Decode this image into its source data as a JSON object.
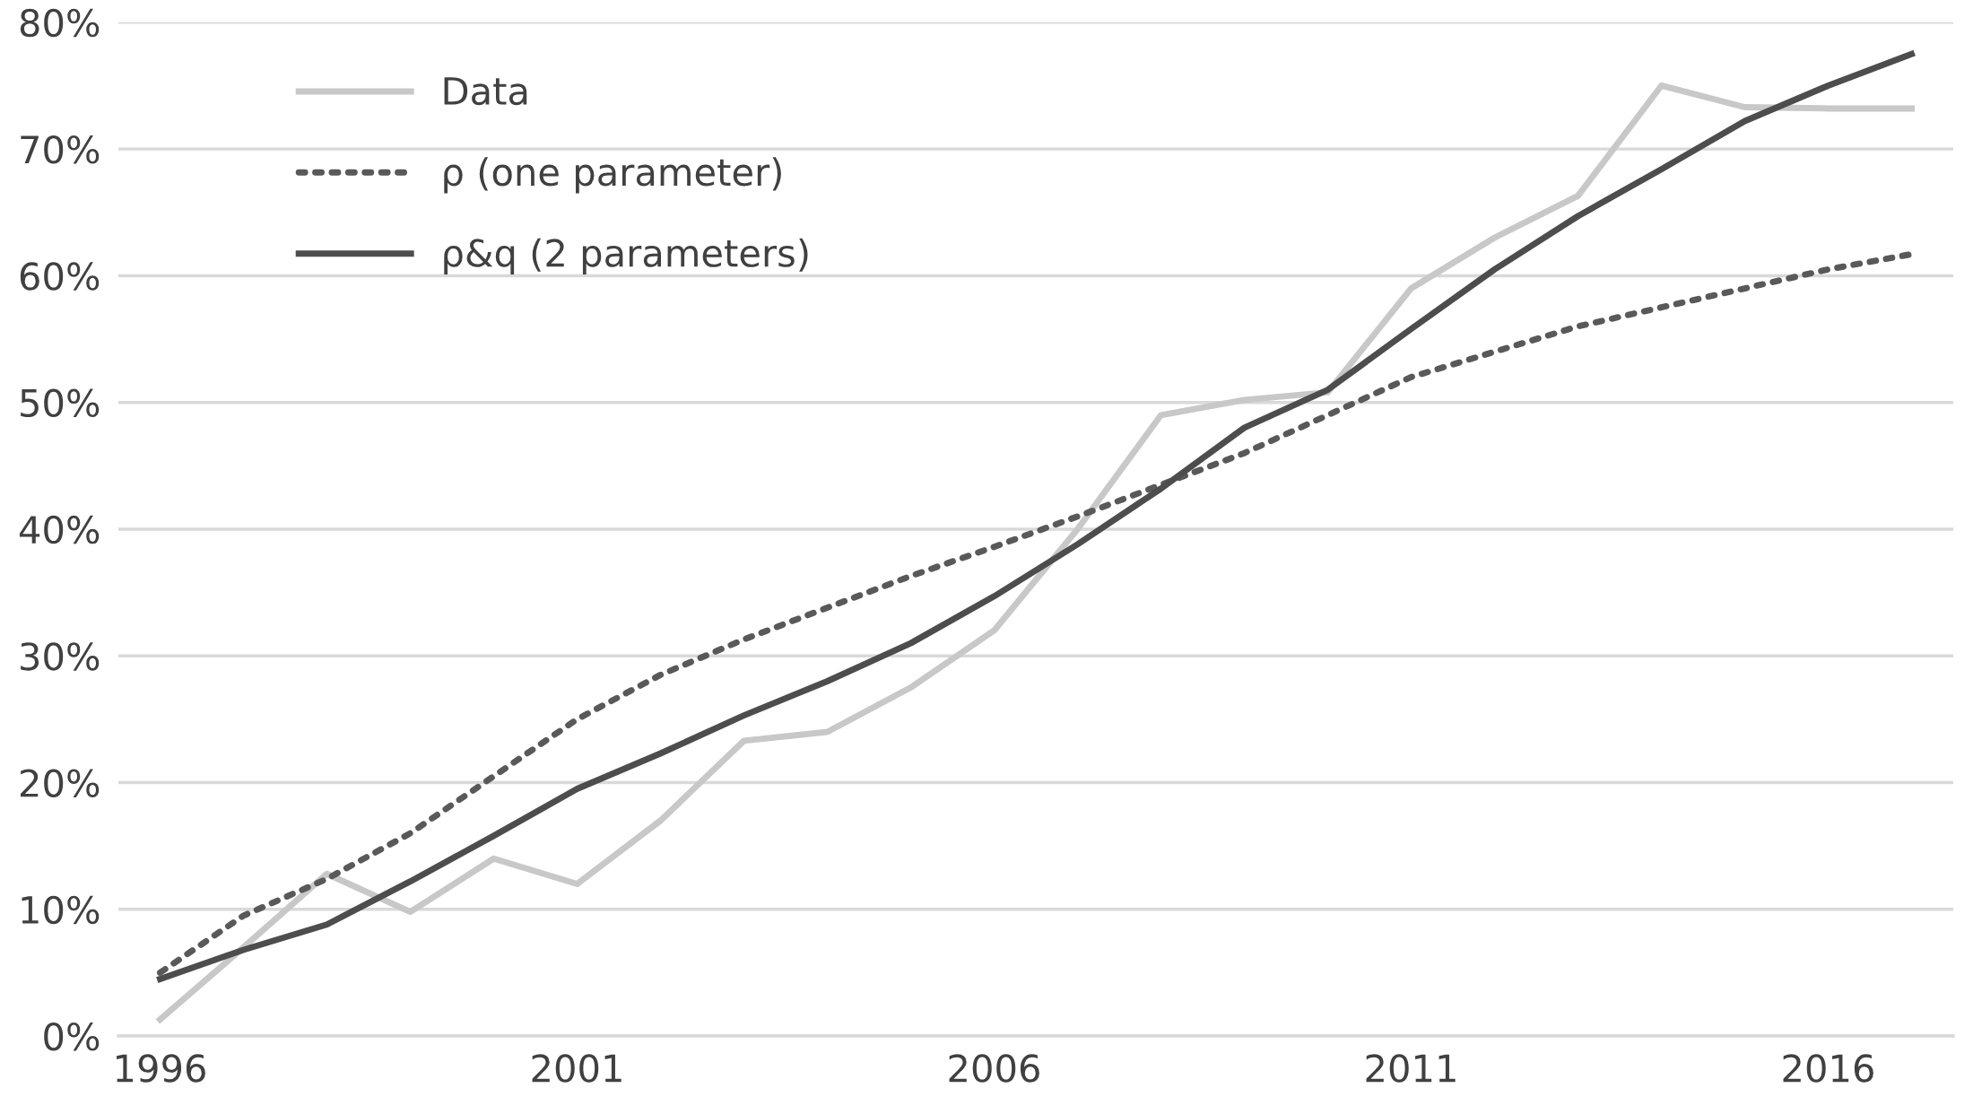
{
  "chart_data": {
    "type": "line",
    "x": [
      1996,
      1997,
      1998,
      1999,
      2000,
      2001,
      2002,
      2003,
      2004,
      2005,
      2006,
      2007,
      2008,
      2009,
      2010,
      2011,
      2012,
      2013,
      2014,
      2015,
      2016,
      2017
    ],
    "series": [
      {
        "name": "Data",
        "color": "#c8c8c8",
        "line_style": "solid",
        "values": [
          1.3,
          7,
          12.8,
          9.8,
          14,
          12,
          17,
          23.3,
          24,
          27.5,
          32,
          40,
          49,
          50.2,
          50.8,
          59,
          63,
          66.3,
          75,
          73.3,
          73.2,
          73.2
        ]
      },
      {
        "name": "ρ (one parameter)",
        "color": "#595959",
        "line_style": "dotted",
        "values": [
          5,
          9.5,
          12.4,
          16,
          20.5,
          25,
          28.5,
          31.3,
          33.8,
          36.3,
          38.6,
          41,
          43.5,
          46,
          49,
          52,
          54,
          56,
          57.5,
          59,
          60.5,
          61.7
        ]
      },
      {
        "name": "ρ&q (2 parameters)",
        "color": "#4d4d4d",
        "line_style": "solid",
        "values": [
          4.5,
          6.8,
          8.8,
          12.2,
          15.8,
          19.5,
          22.3,
          25.3,
          28,
          31,
          34.7,
          38.8,
          43.2,
          48,
          51,
          55.8,
          60.5,
          64.7,
          68.4,
          72.2,
          75,
          77.5
        ]
      }
    ],
    "xlim": [
      1995.5,
      2017.5
    ],
    "xticks": [
      1996,
      2001,
      2006,
      2011,
      2016
    ],
    "ylim": [
      0,
      80
    ],
    "yticks": [
      {
        "value": 0,
        "label": "0%"
      },
      {
        "value": 10,
        "label": "10%"
      },
      {
        "value": 20,
        "label": "20%"
      },
      {
        "value": 30,
        "label": "30%"
      },
      {
        "value": 40,
        "label": "40%"
      },
      {
        "value": 50,
        "label": "50%"
      },
      {
        "value": 60,
        "label": "60%"
      },
      {
        "value": 70,
        "label": "70%"
      },
      {
        "value": 80,
        "label": "80%"
      }
    ],
    "grid": "y",
    "legend": "top left",
    "marker": "none"
  }
}
